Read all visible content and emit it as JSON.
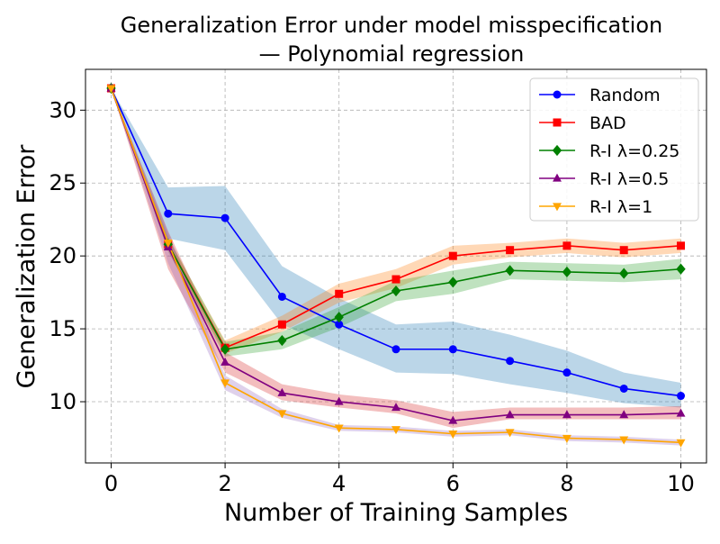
{
  "chart_data": {
    "type": "line",
    "title": "Generalization Error under model misspecification",
    "subtitle": "— Polynomial regression",
    "xlabel": "Number of Training Samples",
    "ylabel": "Generalization Error",
    "xlim": [
      -0.45,
      10.45
    ],
    "ylim": [
      5.8,
      32.8
    ],
    "xticks": [
      0,
      2,
      4,
      6,
      8,
      10
    ],
    "yticks": [
      10,
      15,
      20,
      25,
      30
    ],
    "grid": true,
    "legend_position": "top-right",
    "x": [
      0,
      1,
      2,
      3,
      4,
      5,
      6,
      7,
      8,
      9,
      10
    ],
    "series": [
      {
        "name": "Random",
        "color": "#0000ff",
        "band_color": "#1f77b4",
        "marker": "circle",
        "values": [
          31.5,
          22.9,
          22.6,
          17.2,
          15.3,
          13.6,
          13.6,
          12.8,
          12.0,
          10.9,
          10.4
        ],
        "lower": [
          31.5,
          21.2,
          20.4,
          15.3,
          13.6,
          12.0,
          11.9,
          11.2,
          10.6,
          9.9,
          9.6
        ],
        "upper": [
          31.5,
          24.7,
          24.8,
          19.3,
          17.1,
          15.3,
          15.5,
          14.6,
          13.5,
          12.0,
          11.3
        ]
      },
      {
        "name": "BAD",
        "color": "#ff0000",
        "band_color": "#ff7f0e",
        "marker": "square",
        "values": [
          31.5,
          20.8,
          13.7,
          15.3,
          17.4,
          18.4,
          20.0,
          20.4,
          20.7,
          20.4,
          20.7
        ],
        "lower": [
          31.5,
          20.4,
          13.3,
          14.8,
          16.8,
          17.8,
          19.4,
          19.9,
          20.2,
          19.9,
          20.2
        ],
        "upper": [
          31.5,
          21.2,
          14.2,
          15.9,
          18.1,
          19.1,
          20.7,
          20.9,
          21.2,
          20.9,
          21.2
        ]
      },
      {
        "name": "R-I λ=0.25",
        "color": "#008000",
        "band_color": "#2ca02c",
        "marker": "diamond",
        "values": [
          31.5,
          20.8,
          13.6,
          14.2,
          15.8,
          17.6,
          18.2,
          19.0,
          18.9,
          18.8,
          19.1
        ],
        "lower": [
          31.5,
          20.3,
          13.1,
          13.6,
          15.1,
          16.9,
          17.4,
          18.4,
          18.3,
          18.2,
          18.4
        ],
        "upper": [
          31.5,
          21.3,
          14.1,
          14.8,
          16.5,
          18.3,
          19.0,
          19.6,
          19.5,
          19.4,
          19.8
        ]
      },
      {
        "name": "R-I λ=0.5",
        "color": "#800080",
        "band_color": "#d62728",
        "marker": "triangle-up",
        "values": [
          31.5,
          20.6,
          12.7,
          10.6,
          10.0,
          9.6,
          8.7,
          9.1,
          9.1,
          9.1,
          9.2
        ],
        "lower": [
          31.5,
          19.1,
          12.0,
          10.1,
          9.6,
          9.2,
          8.2,
          8.8,
          8.8,
          8.8,
          8.8
        ],
        "upper": [
          31.5,
          21.7,
          13.4,
          11.2,
          10.5,
          10.1,
          9.3,
          9.6,
          9.6,
          9.6,
          9.7
        ]
      },
      {
        "name": "R-I λ=1",
        "color": "#ffa500",
        "band_color": "#9467bd",
        "marker": "triangle-down",
        "values": [
          31.5,
          20.9,
          11.3,
          9.2,
          8.2,
          8.1,
          7.8,
          7.9,
          7.5,
          7.4,
          7.2
        ],
        "lower": [
          31.5,
          19.5,
          10.8,
          8.9,
          8.0,
          7.9,
          7.6,
          7.7,
          7.3,
          7.2,
          7.0
        ],
        "upper": [
          31.5,
          21.6,
          11.8,
          9.5,
          8.4,
          8.3,
          8.0,
          8.1,
          7.7,
          7.6,
          7.4
        ]
      }
    ]
  }
}
